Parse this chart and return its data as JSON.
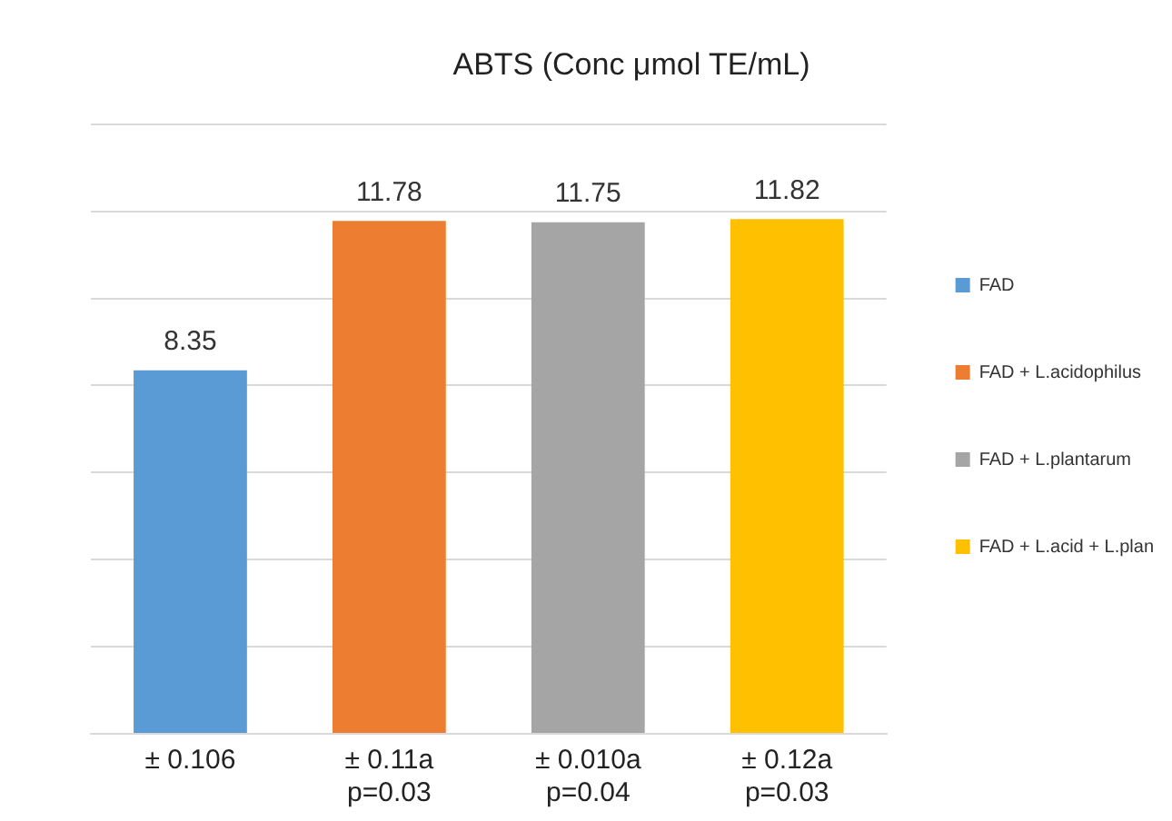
{
  "chart_data": {
    "type": "bar",
    "title": "ABTS (Conc μmol TE/mL)",
    "categories": [
      "± 0.106",
      "± 0.11a\np=0.03",
      "± 0.010a\np=0.04",
      "± 0.12a\np=0.03"
    ],
    "series": [
      {
        "name": "FAD",
        "color": "#5b9bd5",
        "values": [
          8.35,
          null,
          null,
          null
        ]
      },
      {
        "name": "FAD + L.acidophilus",
        "color": "#ed7d31",
        "values": [
          null,
          11.78,
          null,
          null
        ]
      },
      {
        "name": "FAD + L.plantarum",
        "color": "#a5a5a5",
        "values": [
          null,
          null,
          11.75,
          null
        ]
      },
      {
        "name": "FAD + L.acid + L.plan",
        "color": "#ffc000",
        "values": [
          null,
          null,
          null,
          11.82
        ]
      }
    ],
    "ylim": [
      0,
      14
    ],
    "yticks": [
      {
        "value": 0,
        "label": null
      },
      {
        "value": 2,
        "label": null
      },
      {
        "value": 4,
        "label": null
      },
      {
        "value": 6,
        "label": null
      },
      {
        "value": 8,
        "label": null
      },
      {
        "value": 10,
        "label": null
      },
      {
        "value": 12,
        "label": null
      },
      {
        "value": 14,
        "label": null
      }
    ],
    "tick_labels": "x",
    "grid": "y",
    "legend": "right",
    "data_labels": true
  }
}
